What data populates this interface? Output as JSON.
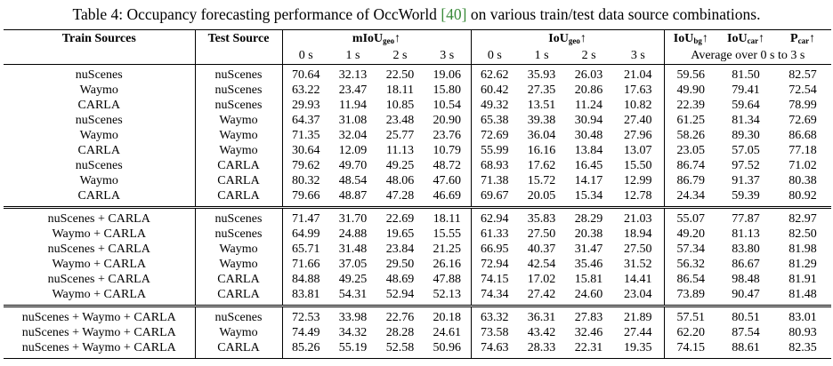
{
  "caption": {
    "prefix": "Table 4: Occupancy forecasting performance of OccWorld ",
    "cite": "[40]",
    "suffix": " on various train/test data source combinations."
  },
  "headers": {
    "train": "Train Sources",
    "test": "Test Source",
    "miou": "mIoU",
    "miou_sub": "geo",
    "iou": "IoU",
    "iou_sub": "geo",
    "arrow": "↑",
    "iou_bg": "IoU",
    "iou_bg_sub": "bg",
    "iou_car": "IoU",
    "iou_car_sub": "car",
    "p_car": "P",
    "p_car_sub": "car",
    "times": [
      "0 s",
      "1 s",
      "2 s",
      "3 s"
    ],
    "average_note": "Average over  0 s to 3 s"
  },
  "groups": [
    {
      "rows": [
        {
          "train": "nuScenes",
          "test": "nuScenes",
          "miou": [
            "70.64",
            "32.13",
            "22.50",
            "19.06"
          ],
          "iou": [
            "62.62",
            "35.93",
            "26.03",
            "21.04"
          ],
          "iou_bg": "59.56",
          "iou_car": "81.50",
          "p_car": "82.57"
        },
        {
          "train": "Waymo",
          "test": "nuScenes",
          "miou": [
            "63.22",
            "23.47",
            "18.11",
            "15.80"
          ],
          "iou": [
            "60.42",
            "27.35",
            "20.86",
            "17.63"
          ],
          "iou_bg": "49.90",
          "iou_car": "79.41",
          "p_car": "72.54"
        },
        {
          "train": "CARLA",
          "test": "nuScenes",
          "miou": [
            "29.93",
            "11.94",
            "10.85",
            "10.54"
          ],
          "iou": [
            "49.32",
            "13.51",
            "11.24",
            "10.82"
          ],
          "iou_bg": "22.39",
          "iou_car": "59.64",
          "p_car": "78.99"
        },
        {
          "train": "nuScenes",
          "test": "Waymo",
          "miou": [
            "64.37",
            "31.08",
            "23.48",
            "20.90"
          ],
          "iou": [
            "65.38",
            "39.38",
            "30.94",
            "27.40"
          ],
          "iou_bg": "61.25",
          "iou_car": "81.34",
          "p_car": "72.69"
        },
        {
          "train": "Waymo",
          "test": "Waymo",
          "miou": [
            "71.35",
            "32.04",
            "25.77",
            "23.76"
          ],
          "iou": [
            "72.69",
            "36.04",
            "30.48",
            "27.96"
          ],
          "iou_bg": "58.26",
          "iou_car": "89.30",
          "p_car": "86.68"
        },
        {
          "train": "CARLA",
          "test": "Waymo",
          "miou": [
            "30.64",
            "12.09",
            "11.13",
            "10.79"
          ],
          "iou": [
            "55.99",
            "16.16",
            "13.84",
            "13.07"
          ],
          "iou_bg": "23.05",
          "iou_car": "57.05",
          "p_car": "77.18"
        },
        {
          "train": "nuScenes",
          "test": "CARLA",
          "miou": [
            "79.62",
            "49.70",
            "49.25",
            "48.72"
          ],
          "iou": [
            "68.93",
            "17.62",
            "16.45",
            "15.50"
          ],
          "iou_bg": "86.74",
          "iou_car": "97.52",
          "p_car": "71.02"
        },
        {
          "train": "Waymo",
          "test": "CARLA",
          "miou": [
            "80.32",
            "48.54",
            "48.06",
            "47.60"
          ],
          "iou": [
            "71.38",
            "15.72",
            "14.17",
            "12.99"
          ],
          "iou_bg": "86.79",
          "iou_car": "91.37",
          "p_car": "80.38"
        },
        {
          "train": "CARLA",
          "test": "CARLA",
          "miou": [
            "79.66",
            "48.87",
            "47.28",
            "46.69"
          ],
          "iou": [
            "69.67",
            "20.05",
            "15.34",
            "12.78"
          ],
          "iou_bg": "24.34",
          "iou_car": "59.39",
          "p_car": "80.92"
        }
      ]
    },
    {
      "rows": [
        {
          "train": "nuScenes + CARLA",
          "test": "nuScenes",
          "miou": [
            "71.47",
            "31.70",
            "22.69",
            "18.11"
          ],
          "iou": [
            "62.94",
            "35.83",
            "28.29",
            "21.03"
          ],
          "iou_bg": "55.07",
          "iou_car": "77.87",
          "p_car": "82.97"
        },
        {
          "train": "Waymo + CARLA",
          "test": "nuScenes",
          "miou": [
            "64.99",
            "24.88",
            "19.65",
            "15.55"
          ],
          "iou": [
            "61.33",
            "27.50",
            "20.38",
            "18.94"
          ],
          "iou_bg": "49.20",
          "iou_car": "81.13",
          "p_car": "82.50"
        },
        {
          "train": "nuScenes + CARLA",
          "test": "Waymo",
          "miou": [
            "65.71",
            "31.48",
            "23.84",
            "21.25"
          ],
          "iou": [
            "66.95",
            "40.37",
            "31.47",
            "27.50"
          ],
          "iou_bg": "57.34",
          "iou_car": "83.80",
          "p_car": "81.98"
        },
        {
          "train": "Waymo + CARLA",
          "test": "Waymo",
          "miou": [
            "71.66",
            "37.05",
            "29.50",
            "26.16"
          ],
          "iou": [
            "72.94",
            "42.54",
            "35.46",
            "31.52"
          ],
          "iou_bg": "56.32",
          "iou_car": "86.67",
          "p_car": "81.29"
        },
        {
          "train": "nuScenes + CARLA",
          "test": "CARLA",
          "miou": [
            "84.88",
            "49.25",
            "48.69",
            "47.88"
          ],
          "iou": [
            "74.15",
            "17.02",
            "15.81",
            "14.41"
          ],
          "iou_bg": "86.54",
          "iou_car": "98.48",
          "p_car": "81.91"
        },
        {
          "train": "Waymo + CARLA",
          "test": "CARLA",
          "miou": [
            "83.81",
            "54.31",
            "52.94",
            "52.13"
          ],
          "iou": [
            "74.34",
            "27.42",
            "24.60",
            "23.04"
          ],
          "iou_bg": "73.89",
          "iou_car": "90.47",
          "p_car": "81.48"
        }
      ]
    },
    {
      "rows": [
        {
          "train": "nuScenes + Waymo + CARLA",
          "test": "nuScenes",
          "miou": [
            "72.53",
            "33.98",
            "22.76",
            "20.18"
          ],
          "iou": [
            "63.32",
            "36.31",
            "27.83",
            "21.89"
          ],
          "iou_bg": "57.51",
          "iou_car": "80.51",
          "p_car": "83.01"
        },
        {
          "train": "nuScenes + Waymo + CARLA",
          "test": "Waymo",
          "miou": [
            "74.49",
            "34.32",
            "28.28",
            "24.61"
          ],
          "iou": [
            "73.58",
            "43.42",
            "32.46",
            "27.44"
          ],
          "iou_bg": "62.20",
          "iou_car": "87.54",
          "p_car": "80.93"
        },
        {
          "train": "nuScenes + Waymo + CARLA",
          "test": "CARLA",
          "miou": [
            "85.26",
            "55.19",
            "52.58",
            "50.96"
          ],
          "iou": [
            "74.63",
            "28.33",
            "22.31",
            "19.35"
          ],
          "iou_bg": "74.15",
          "iou_car": "88.61",
          "p_car": "82.35"
        }
      ]
    }
  ]
}
